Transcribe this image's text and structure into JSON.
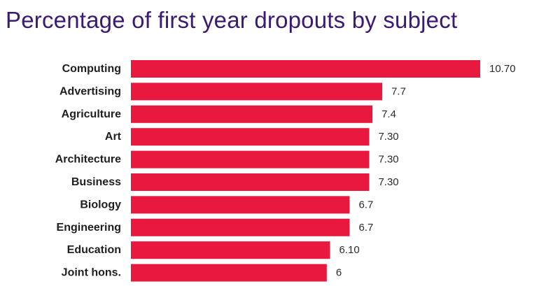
{
  "chart_data": {
    "type": "bar",
    "orientation": "horizontal",
    "title": "Percentage of first year dropouts by subject",
    "xlabel": "",
    "ylabel": "",
    "categories": [
      "Computing",
      "Advertising",
      "Agriculture",
      "Art",
      "Architecture",
      "Business",
      "Biology",
      "Engineering",
      "Education",
      "Joint hons."
    ],
    "values": [
      10.7,
      7.7,
      7.4,
      7.3,
      7.3,
      7.3,
      6.7,
      6.7,
      6.1,
      6
    ],
    "value_labels": [
      "10.70",
      "7.7",
      "7.4",
      "7.30",
      "7.30",
      "7.30",
      "6.7",
      "6.7",
      "6.10",
      "6"
    ],
    "xlim": [
      0,
      10.7
    ],
    "grid": false,
    "legend": "none",
    "bar_color": "#e8183f"
  }
}
